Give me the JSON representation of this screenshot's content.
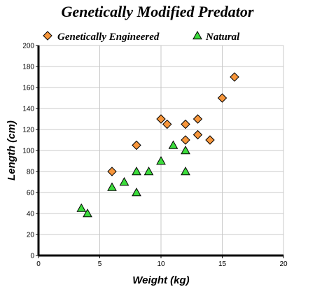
{
  "colors": {
    "engineered": "#f7963b",
    "natural": "#3cdc3c",
    "grid": "#c8c8c8",
    "axis": "#000000"
  },
  "chart_data": {
    "type": "scatter",
    "title": "Genetically Modified Predator",
    "xlabel": "Weight (kg)",
    "ylabel": "Length (cm)",
    "xlim": [
      0,
      20
    ],
    "ylim": [
      0,
      200
    ],
    "xticks": [
      "0",
      "5",
      "10",
      "15",
      "20"
    ],
    "yticks": [
      "0",
      "20",
      "40",
      "60",
      "80",
      "100",
      "120",
      "140",
      "160",
      "180",
      "200"
    ],
    "grid": true,
    "legend_position": "top",
    "series": [
      {
        "name": "Genetically Engineered",
        "marker": "diamond",
        "color": "#f7963b",
        "x": [
          6,
          8,
          10,
          10.5,
          12,
          12,
          13,
          13,
          14,
          15,
          16
        ],
        "y": [
          80,
          105,
          130,
          125,
          125,
          110,
          130,
          115,
          110,
          150,
          170
        ]
      },
      {
        "name": "Natural",
        "marker": "triangle",
        "color": "#3cdc3c",
        "x": [
          3.5,
          4,
          6,
          7,
          8,
          8,
          9,
          10,
          11,
          12,
          12
        ],
        "y": [
          45,
          40,
          65,
          70,
          60,
          80,
          80,
          90,
          105,
          100,
          80
        ]
      }
    ]
  }
}
